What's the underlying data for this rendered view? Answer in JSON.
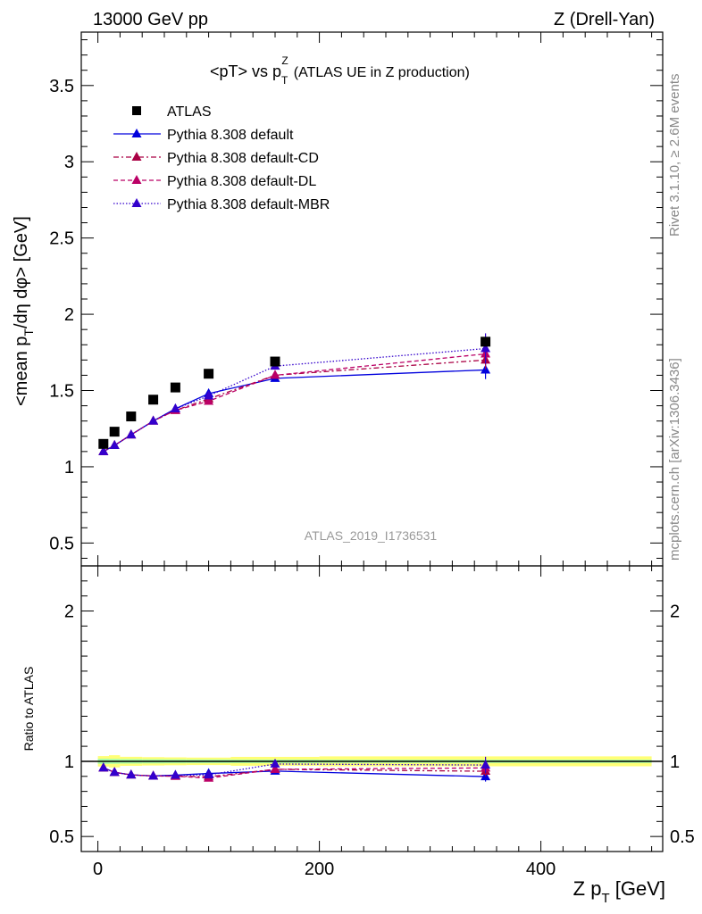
{
  "header": {
    "left": "13000 GeV pp",
    "right": "Z (Drell-Yan)"
  },
  "side_labels": {
    "rivet": "Rivet 3.1.10, ≥ 2.6M events",
    "mcplots": "mcplots.cern.ch [arXiv:1306.3436]"
  },
  "chart_data": {
    "type": "scatter",
    "title_main": "<pT> vs p",
    "title_sup": "Z",
    "title_sub": "T",
    "title_tail": "(ATLAS UE in Z production)",
    "ylabel": "<mean p_T/dη dφ> [GeV]",
    "ylabel_parts": [
      "<mean p",
      "T",
      "/dη dφ> [GeV]"
    ],
    "xlabel_parts": [
      "Z p",
      "T",
      " [GeV]"
    ],
    "watermark": "ATLAS_2019_I1736531",
    "ratio_ylabel": "Ratio to ATLAS",
    "xlim": [
      -15,
      510
    ],
    "ylim": [
      0.35,
      3.85
    ],
    "ratio_ylim": [
      0.4,
      2.3
    ],
    "x_ticks": [
      0,
      200,
      400
    ],
    "y_ticks": [
      0.5,
      1,
      1.5,
      2,
      2.5,
      3,
      3.5
    ],
    "y_tick_labels": [
      "0.5",
      "1",
      "1.5",
      "2",
      "2.5",
      "3",
      "3.5"
    ],
    "ratio_ticks": [
      0.5,
      1,
      2
    ],
    "ratio_tick_labels": [
      "0.5",
      "1",
      "2"
    ],
    "x": [
      5,
      15,
      30,
      50,
      70,
      100,
      160,
      350
    ],
    "x_bins": [
      [
        0,
        10
      ],
      [
        10,
        20
      ],
      [
        20,
        40
      ],
      [
        40,
        60
      ],
      [
        60,
        80
      ],
      [
        80,
        120
      ],
      [
        120,
        200
      ],
      [
        200,
        500
      ]
    ],
    "data": {
      "name": "ATLAS",
      "color": "#000000",
      "values": [
        1.15,
        1.23,
        1.33,
        1.44,
        1.52,
        1.61,
        1.69,
        1.82
      ],
      "band_inner": [
        0.02,
        0.02,
        0.02,
        0.02,
        0.02,
        0.02,
        0.02,
        0.02
      ],
      "band_outer": [
        0.04,
        0.05,
        0.04,
        0.04,
        0.04,
        0.04,
        0.05,
        0.06
      ]
    },
    "series": [
      {
        "name": "Pythia 8.308 default",
        "color": "#0000dd",
        "dash": "",
        "values": [
          1.1,
          1.14,
          1.21,
          1.3,
          1.38,
          1.48,
          1.58,
          1.635
        ],
        "errors": [
          0.005,
          0.005,
          0.005,
          0.008,
          0.01,
          0.012,
          0.02,
          0.06
        ]
      },
      {
        "name": "Pythia 8.308 default-CD",
        "color": "#aa0044",
        "dash": "6,3,2,3",
        "values": [
          1.1,
          1.14,
          1.21,
          1.3,
          1.37,
          1.445,
          1.6,
          1.7
        ],
        "errors": [
          0.005,
          0.005,
          0.005,
          0.008,
          0.01,
          0.012,
          0.02,
          0.06
        ]
      },
      {
        "name": "Pythia 8.308 default-DL",
        "color": "#bb0066",
        "dash": "5,3",
        "values": [
          1.1,
          1.14,
          1.21,
          1.3,
          1.37,
          1.43,
          1.6,
          1.74
        ],
        "errors": [
          0.005,
          0.005,
          0.005,
          0.008,
          0.01,
          0.012,
          0.02,
          0.06
        ]
      },
      {
        "name": "Pythia 8.308 default-MBR",
        "color": "#3300cc",
        "dash": "1.5,2",
        "values": [
          1.1,
          1.14,
          1.21,
          1.3,
          1.38,
          1.465,
          1.66,
          1.775
        ],
        "errors": [
          0.005,
          0.005,
          0.005,
          0.008,
          0.01,
          0.012,
          0.02,
          0.1
        ]
      }
    ]
  }
}
